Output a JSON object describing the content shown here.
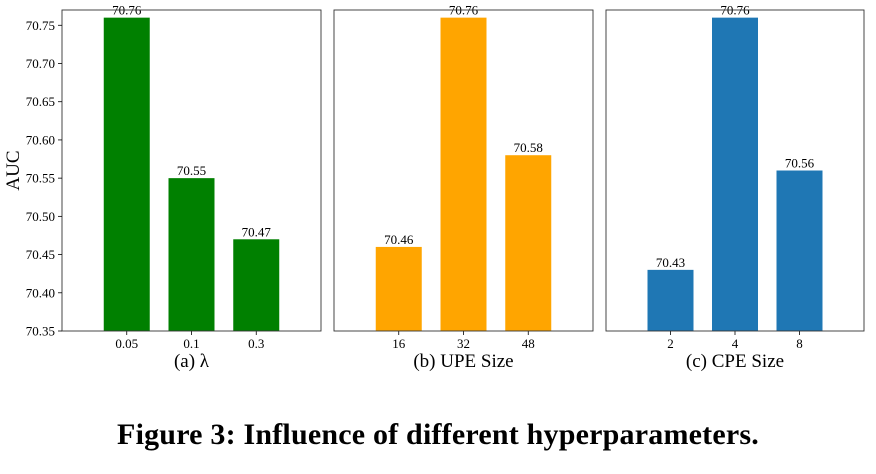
{
  "figure": {
    "caption": "Figure 3: Influence of different hyperparameters."
  },
  "chart_data": [
    {
      "type": "bar",
      "panel_label": "(a) λ",
      "ylabel": "AUC",
      "ylim": [
        70.35,
        70.77
      ],
      "yticks": [
        "70.35",
        "70.40",
        "70.45",
        "70.50",
        "70.55",
        "70.60",
        "70.65",
        "70.70",
        "70.75"
      ],
      "categories": [
        "0.05",
        "0.1",
        "0.3"
      ],
      "values": [
        70.76,
        70.55,
        70.47
      ],
      "data_labels": [
        "70.76",
        "70.55",
        "70.47"
      ],
      "color": "#008000"
    },
    {
      "type": "bar",
      "panel_label": "(b) UPE Size",
      "ylim": [
        70.35,
        70.77
      ],
      "categories": [
        "16",
        "32",
        "48"
      ],
      "values": [
        70.46,
        70.76,
        70.58
      ],
      "data_labels": [
        "70.46",
        "70.76",
        "70.58"
      ],
      "color": "#FFA500"
    },
    {
      "type": "bar",
      "panel_label": "(c) CPE Size",
      "ylim": [
        70.35,
        70.77
      ],
      "categories": [
        "2",
        "4",
        "8"
      ],
      "values": [
        70.43,
        70.76,
        70.56
      ],
      "data_labels": [
        "70.43",
        "70.76",
        "70.56"
      ],
      "color": "#1F77B4"
    }
  ]
}
